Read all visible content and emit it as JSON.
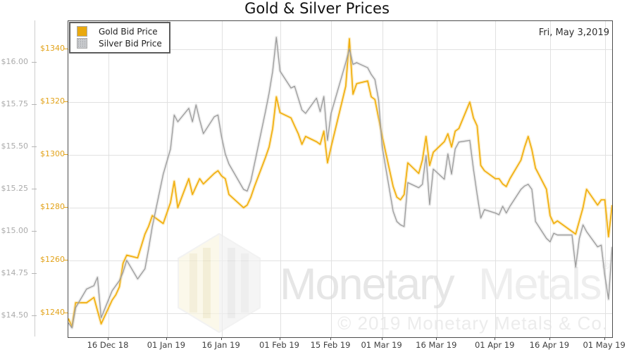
{
  "header": {
    "title": "Gold & Silver Prices",
    "date_label": "Fri, May 3,2019"
  },
  "legend": {
    "position": "top-left",
    "items": [
      {
        "label": "Gold Bid Price",
        "swatch": "solid",
        "color": "#E9A90F"
      },
      {
        "label": "Silver Bid Price",
        "swatch": "dotted",
        "color": "#C9CBCE"
      }
    ]
  },
  "watermark": {
    "logo": "monetary-metals-hexagon-logo",
    "word_primary": "Monetary",
    "word_secondary": "Metals",
    "registered_mark": "®",
    "copyright": "© 2019 Monetary Metals & Co."
  },
  "colors": {
    "gold_line": "#F1AF0E",
    "gold_glow": "#F5C544",
    "silver_line": "#9B9B9B",
    "silver_glow": "#C4C4C4",
    "gold_axis_label": "#E2A219",
    "silver_axis_label": "#ABABAB",
    "grid": "#E1E1E1",
    "plot_border": "#4D4D4D",
    "background": "#FFFFFF"
  },
  "chart_data": {
    "type": "line",
    "title": "Gold & Silver Prices",
    "grid": true,
    "legend_position": "top-left",
    "x_axis": {
      "start_date": "05 Dec 2018",
      "end_date": "03 May 2019",
      "range_days": [
        0,
        149
      ],
      "note": "points use d = calendar days since first plotted day (05 Dec 2018)",
      "ticks": [
        {
          "d": 11,
          "label": "16 Dec 18"
        },
        {
          "d": 27,
          "label": "01 Jan 19"
        },
        {
          "d": 42,
          "label": "16 Jan 19"
        },
        {
          "d": 58,
          "label": "01 Feb 19"
        },
        {
          "d": 72,
          "label": "15 Feb 19"
        },
        {
          "d": 86,
          "label": "01 Mar 19"
        },
        {
          "d": 101,
          "label": "16 Mar 19"
        },
        {
          "d": 117,
          "label": "01 Apr 19"
        },
        {
          "d": 132,
          "label": "16 Apr 19"
        },
        {
          "d": 147,
          "label": "01 May 19"
        }
      ]
    },
    "gold_axis": {
      "side": "left-inner",
      "tick_values": [
        1240,
        1260,
        1280,
        1300,
        1320,
        1340
      ],
      "tick_labels": [
        "$1240",
        "$1260",
        "$1280",
        "$1300",
        "$1320",
        "$1340"
      ],
      "range": [
        1231,
        1351
      ]
    },
    "silver_axis": {
      "side": "left-outer",
      "tick_values": [
        14.5,
        14.75,
        15.0,
        15.25,
        15.5,
        15.75,
        16.0
      ],
      "tick_labels": [
        "$14.50",
        "$14.75",
        "$15.00",
        "$15.25",
        "$15.50",
        "$15.75",
        "$16.00"
      ],
      "range": [
        14.21,
        16.08
      ]
    },
    "series": [
      {
        "name": "Gold Bid Price",
        "axis": "gold",
        "color": "#F1AF0E",
        "points": [
          [
            0,
            1238
          ],
          [
            1,
            1235
          ],
          [
            2,
            1244
          ],
          [
            5,
            1244
          ],
          [
            6,
            1245
          ],
          [
            7,
            1246
          ],
          [
            8,
            1241
          ],
          [
            9,
            1236
          ],
          [
            12,
            1245
          ],
          [
            13,
            1247
          ],
          [
            14,
            1250
          ],
          [
            15,
            1259
          ],
          [
            16,
            1262
          ],
          [
            19,
            1261
          ],
          [
            21,
            1270
          ],
          [
            22,
            1273
          ],
          [
            23,
            1277
          ],
          [
            26,
            1274
          ],
          [
            28,
            1282
          ],
          [
            29,
            1290
          ],
          [
            30,
            1280
          ],
          [
            33,
            1291
          ],
          [
            34,
            1285
          ],
          [
            35,
            1288
          ],
          [
            36,
            1291
          ],
          [
            37,
            1289
          ],
          [
            40,
            1293
          ],
          [
            41,
            1294
          ],
          [
            42,
            1292
          ],
          [
            43,
            1291
          ],
          [
            44,
            1285
          ],
          [
            48,
            1280
          ],
          [
            49,
            1281
          ],
          [
            50,
            1284
          ],
          [
            51,
            1288
          ],
          [
            54,
            1299
          ],
          [
            55,
            1303
          ],
          [
            56,
            1310
          ],
          [
            57,
            1322
          ],
          [
            58,
            1316
          ],
          [
            61,
            1314
          ],
          [
            62,
            1311
          ],
          [
            63,
            1308
          ],
          [
            64,
            1304
          ],
          [
            65,
            1307
          ],
          [
            68,
            1305
          ],
          [
            69,
            1304
          ],
          [
            70,
            1309
          ],
          [
            71,
            1297
          ],
          [
            72,
            1303
          ],
          [
            76,
            1326
          ],
          [
            77,
            1344
          ],
          [
            78,
            1323
          ],
          [
            79,
            1327
          ],
          [
            82,
            1328
          ],
          [
            83,
            1322
          ],
          [
            84,
            1321
          ],
          [
            85,
            1314
          ],
          [
            86,
            1307
          ],
          [
            89,
            1288
          ],
          [
            90,
            1284
          ],
          [
            91,
            1283
          ],
          [
            92,
            1285
          ],
          [
            93,
            1297
          ],
          [
            96,
            1293
          ],
          [
            97,
            1298
          ],
          [
            98,
            1307
          ],
          [
            99,
            1296
          ],
          [
            100,
            1301
          ],
          [
            103,
            1305
          ],
          [
            104,
            1308
          ],
          [
            105,
            1303
          ],
          [
            106,
            1309
          ],
          [
            107,
            1310
          ],
          [
            110,
            1320
          ],
          [
            111,
            1314
          ],
          [
            112,
            1311
          ],
          [
            113,
            1296
          ],
          [
            114,
            1294
          ],
          [
            117,
            1291
          ],
          [
            118,
            1291
          ],
          [
            119,
            1289
          ],
          [
            120,
            1288
          ],
          [
            121,
            1291
          ],
          [
            124,
            1298
          ],
          [
            125,
            1303
          ],
          [
            126,
            1307
          ],
          [
            127,
            1302
          ],
          [
            128,
            1295
          ],
          [
            131,
            1287
          ],
          [
            132,
            1277
          ],
          [
            133,
            1274
          ],
          [
            134,
            1275
          ],
          [
            138,
            1271
          ],
          [
            139,
            1270
          ],
          [
            140,
            1275
          ],
          [
            141,
            1280
          ],
          [
            142,
            1287
          ],
          [
            145,
            1281
          ],
          [
            146,
            1283
          ],
          [
            147,
            1283
          ],
          [
            148,
            1269
          ],
          [
            149,
            1281
          ]
        ]
      },
      {
        "name": "Silver Bid Price",
        "axis": "silver",
        "color": "#9B9B9B",
        "points": [
          [
            0,
            14.46
          ],
          [
            1,
            14.43
          ],
          [
            2,
            14.55
          ],
          [
            5,
            14.66
          ],
          [
            6,
            14.67
          ],
          [
            7,
            14.68
          ],
          [
            8,
            14.73
          ],
          [
            9,
            14.49
          ],
          [
            12,
            14.65
          ],
          [
            13,
            14.68
          ],
          [
            14,
            14.71
          ],
          [
            15,
            14.76
          ],
          [
            16,
            14.83
          ],
          [
            19,
            14.72
          ],
          [
            21,
            14.78
          ],
          [
            22,
            14.9
          ],
          [
            23,
            15.03
          ],
          [
            26,
            15.34
          ],
          [
            28,
            15.49
          ],
          [
            29,
            15.69
          ],
          [
            30,
            15.65
          ],
          [
            33,
            15.73
          ],
          [
            34,
            15.65
          ],
          [
            35,
            15.75
          ],
          [
            36,
            15.66
          ],
          [
            37,
            15.58
          ],
          [
            40,
            15.68
          ],
          [
            41,
            15.69
          ],
          [
            42,
            15.56
          ],
          [
            43,
            15.46
          ],
          [
            44,
            15.4
          ],
          [
            48,
            15.25
          ],
          [
            49,
            15.24
          ],
          [
            50,
            15.3
          ],
          [
            51,
            15.4
          ],
          [
            54,
            15.71
          ],
          [
            55,
            15.82
          ],
          [
            56,
            15.95
          ],
          [
            57,
            16.15
          ],
          [
            58,
            15.95
          ],
          [
            61,
            15.85
          ],
          [
            62,
            15.86
          ],
          [
            63,
            15.79
          ],
          [
            64,
            15.72
          ],
          [
            65,
            15.7
          ],
          [
            68,
            15.79
          ],
          [
            69,
            15.71
          ],
          [
            70,
            15.8
          ],
          [
            71,
            15.54
          ],
          [
            72,
            15.7
          ],
          [
            76,
            16.0
          ],
          [
            77,
            16.08
          ],
          [
            78,
            15.99
          ],
          [
            79,
            16.0
          ],
          [
            82,
            15.97
          ],
          [
            83,
            15.93
          ],
          [
            84,
            15.9
          ],
          [
            85,
            15.78
          ],
          [
            86,
            15.5
          ],
          [
            89,
            15.12
          ],
          [
            90,
            15.06
          ],
          [
            91,
            15.04
          ],
          [
            92,
            15.03
          ],
          [
            93,
            15.29
          ],
          [
            96,
            15.26
          ],
          [
            97,
            15.28
          ],
          [
            98,
            15.45
          ],
          [
            99,
            15.16
          ],
          [
            100,
            15.37
          ],
          [
            103,
            15.31
          ],
          [
            104,
            15.46
          ],
          [
            105,
            15.34
          ],
          [
            106,
            15.49
          ],
          [
            107,
            15.53
          ],
          [
            110,
            15.54
          ],
          [
            111,
            15.37
          ],
          [
            112,
            15.22
          ],
          [
            113,
            15.08
          ],
          [
            114,
            15.13
          ],
          [
            117,
            15.11
          ],
          [
            118,
            15.1
          ],
          [
            119,
            15.15
          ],
          [
            120,
            15.11
          ],
          [
            121,
            15.15
          ],
          [
            124,
            15.25
          ],
          [
            125,
            15.27
          ],
          [
            126,
            15.28
          ],
          [
            127,
            15.25
          ],
          [
            128,
            15.06
          ],
          [
            131,
            14.96
          ],
          [
            132,
            14.94
          ],
          [
            133,
            14.99
          ],
          [
            134,
            14.98
          ],
          [
            138,
            14.98
          ],
          [
            139,
            14.79
          ],
          [
            140,
            14.96
          ],
          [
            141,
            15.04
          ],
          [
            142,
            15.0
          ],
          [
            145,
            14.91
          ],
          [
            146,
            14.92
          ],
          [
            147,
            14.74
          ],
          [
            148,
            14.6
          ],
          [
            149,
            14.91
          ]
        ]
      }
    ]
  }
}
